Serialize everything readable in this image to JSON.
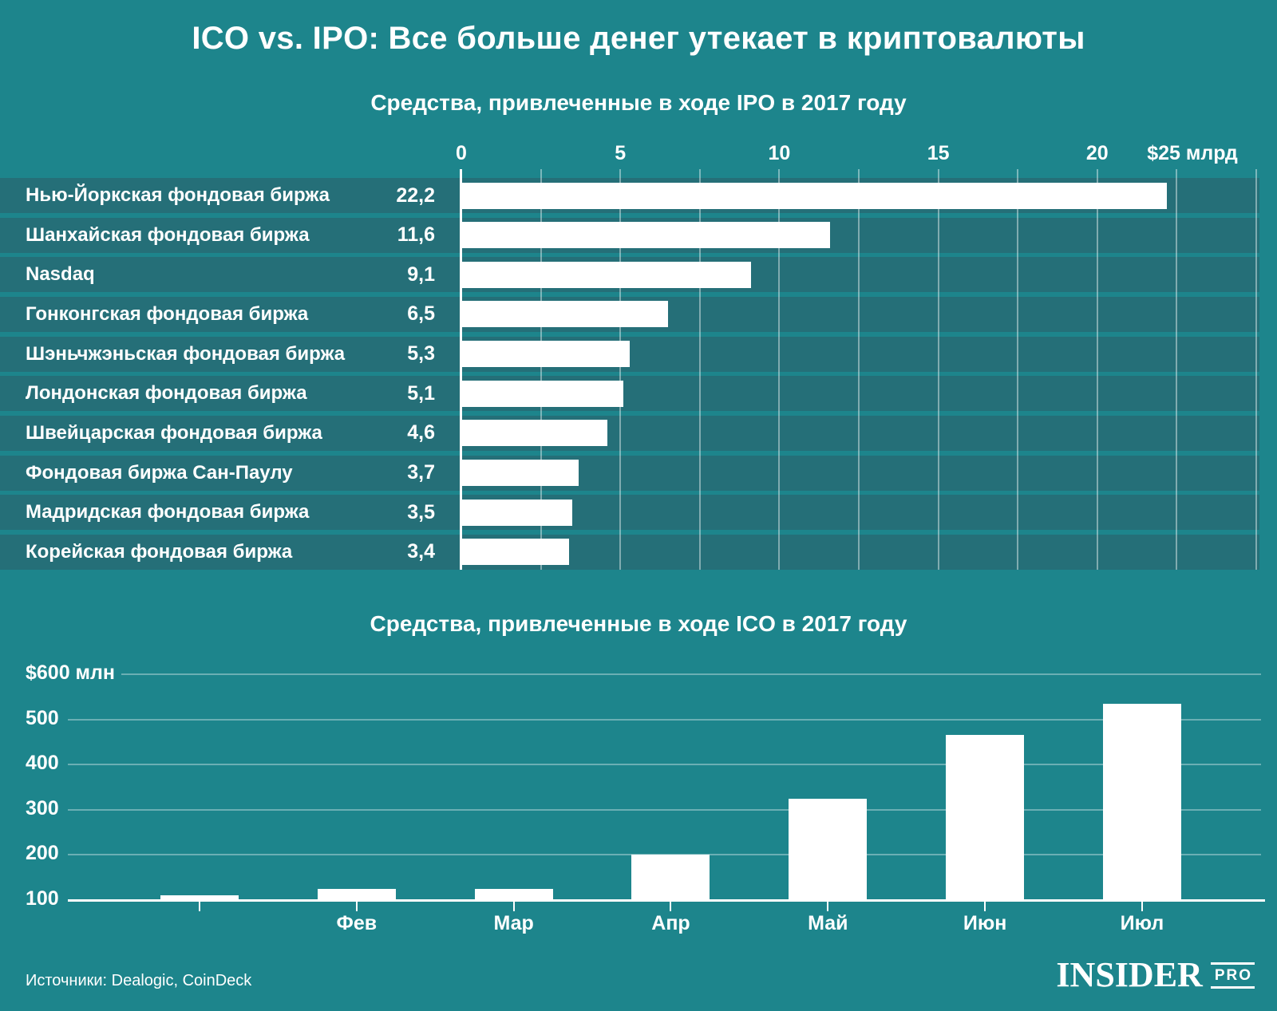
{
  "header": {
    "title": "ICO vs. IPO: Все больше денег утекает в криптовалюты"
  },
  "colors": {
    "background": "#1d858c",
    "row_band": "#256f78",
    "bar": "#ffffff",
    "text": "#ffffff"
  },
  "chart_data": [
    {
      "type": "bar",
      "orientation": "horizontal",
      "title": "Средства, привлеченные в ходе IPO в 2017 году",
      "unit": "$ млрд",
      "categories": [
        "Нью-Йоркская фондовая биржа",
        "Шанхайская фондовая биржа",
        "Nasdaq",
        "Гонконгская фондовая биржа",
        "Шэньчжэньская фондовая биржа",
        "Лондонская фондовая биржа",
        "Швейцарская фондовая биржа",
        "Фондовая биржа Сан-Паулу",
        "Мадридская фондовая биржа",
        "Корейская фондовая биржа"
      ],
      "values": [
        22.2,
        11.6,
        9.1,
        6.5,
        5.3,
        5.1,
        4.6,
        3.7,
        3.5,
        3.4
      ],
      "value_labels": [
        "22,2",
        "11,6",
        "9,1",
        "6,5",
        "5,3",
        "5,1",
        "4,6",
        "3,7",
        "3,5",
        "3,4"
      ],
      "xlim": [
        0,
        25
      ],
      "grid_step": 2.5,
      "grid": true,
      "legend": "none",
      "x_ticks": [
        {
          "label": "0",
          "value": 0
        },
        {
          "label": "5",
          "value": 5
        },
        {
          "label": "10",
          "value": 10
        },
        {
          "label": "15",
          "value": 15
        },
        {
          "label": "20",
          "value": 20
        },
        {
          "label": "$25 млрд",
          "value": 25
        }
      ]
    },
    {
      "type": "bar",
      "orientation": "vertical",
      "title": "Средства, привлеченные в ходе ICO в 2017 году",
      "unit": "$ млн",
      "categories": [
        "",
        "Фев",
        "Мар",
        "Апр",
        "Май",
        "Июн",
        "Июл"
      ],
      "values": [
        110,
        125,
        125,
        200,
        325,
        465,
        535
      ],
      "ylim": [
        100,
        600
      ],
      "grid": true,
      "legend": "none",
      "y_ticks": [
        {
          "label": "$600 млн",
          "value": 600
        },
        {
          "label": "500",
          "value": 500
        },
        {
          "label": "400",
          "value": 400
        },
        {
          "label": "300",
          "value": 300
        },
        {
          "label": "200",
          "value": 200
        },
        {
          "label": "100",
          "value": 100
        }
      ]
    }
  ],
  "footer": {
    "source": "Источники: Dealogic, CoinDeck",
    "logo_main": "INSIDER",
    "logo_pro": "PRO"
  }
}
